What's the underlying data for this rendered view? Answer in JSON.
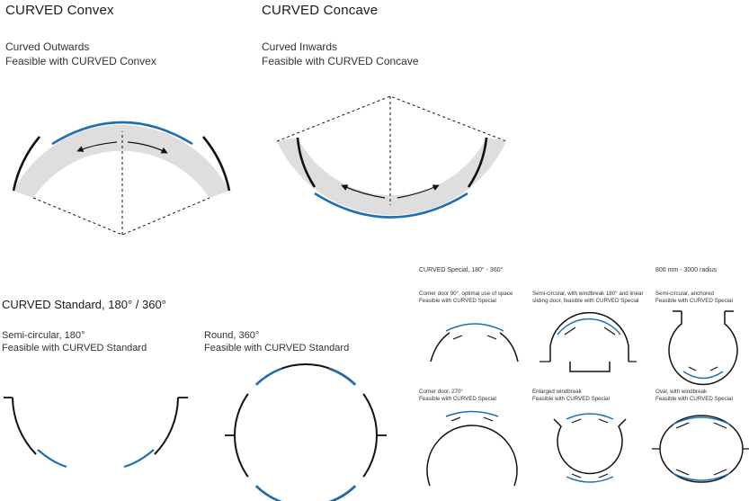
{
  "convex": {
    "title": "CURVED Convex",
    "line1": "Curved Outwards",
    "line2": "Feasible with CURVED Convex"
  },
  "concave": {
    "title": "CURVED Concave",
    "line1": "Curved Inwards",
    "line2": "Feasible with CURVED Concave"
  },
  "standard": {
    "title": "CURVED Standard, 180° / 360°",
    "semi_line1": "Semi-circular, 180°",
    "semi_line2": "Feasible with CURVED Standard",
    "round_line1": "Round, 360°",
    "round_line2": "Feasible with CURVED Standard"
  },
  "special": {
    "title": "CURVED Special, 180° - 360°",
    "radius": "800 mm - 3000 radius",
    "items": [
      {
        "line1": "Corner door 90°, optimal use of space",
        "line2": "Feasible with CURVED Special"
      },
      {
        "line1": "Semi-circular, with windbreak 180° and linear",
        "line2": "sliding door, feasible with CURVED Special"
      },
      {
        "line1": "Semi-circular, anchored",
        "line2": "Feasible with CURVED Special"
      },
      {
        "line1": "Corner door, 270°",
        "line2": "Feasible with CURVED Special"
      },
      {
        "line1": "Enlarged windbreak",
        "line2": "Feasible with CURVED Special"
      },
      {
        "line1": "Oval, with windbreak",
        "line2": "Feasible with CURVED Special"
      }
    ]
  },
  "colors": {
    "blue": "#1f6fb5",
    "band": "#dedede",
    "line": "#111111"
  }
}
